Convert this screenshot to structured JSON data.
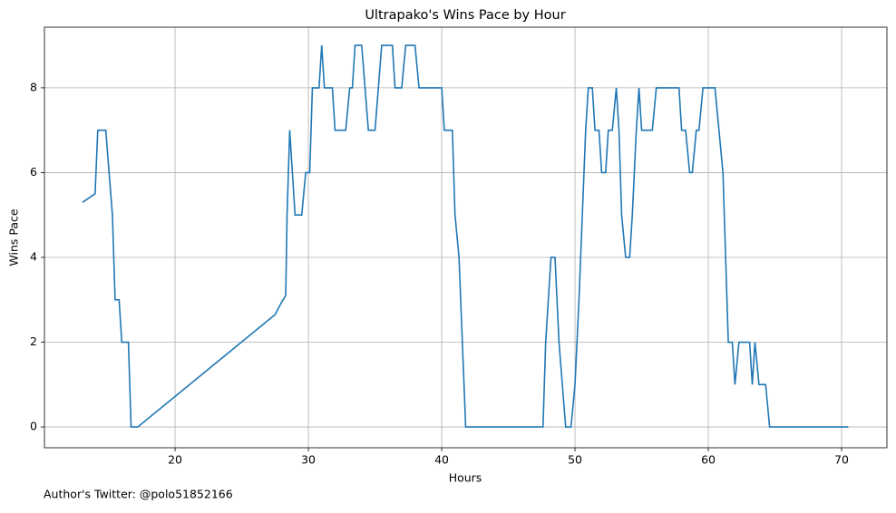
{
  "chart_data": {
    "type": "line",
    "title": "Ultrapako's Wins Pace by Hour",
    "xlabel": "Hours",
    "ylabel": "Wins Pace",
    "footnote": "Author's Twitter: @polo51852166",
    "color": "#1f77b4",
    "grid": true,
    "xlim": [
      10.2,
      73.4
    ],
    "ylim": [
      -0.49,
      9.43
    ],
    "xticks": [
      20,
      30,
      40,
      50,
      60,
      70
    ],
    "yticks": [
      0,
      2,
      4,
      6,
      8
    ],
    "x": [
      13.06,
      14.0,
      14.2,
      14.8,
      15.3,
      15.5,
      15.8,
      16.0,
      16.5,
      16.7,
      17.2,
      27.5,
      28.0,
      28.3,
      28.4,
      28.6,
      29.0,
      29.5,
      29.8,
      30.1,
      30.3,
      30.8,
      31.0,
      31.2,
      31.8,
      32.0,
      32.8,
      33.1,
      33.3,
      33.5,
      34.0,
      34.5,
      35.0,
      35.5,
      36.3,
      36.5,
      37.0,
      37.3,
      38.0,
      38.3,
      40.0,
      40.2,
      40.8,
      41.0,
      41.3,
      41.8,
      47.6,
      47.8,
      48.2,
      48.5,
      48.8,
      49.3,
      49.7,
      50.0,
      50.3,
      50.8,
      51.0,
      51.3,
      51.5,
      51.8,
      52.0,
      52.3,
      52.5,
      52.8,
      53.1,
      53.3,
      53.5,
      53.8,
      54.1,
      54.3,
      54.6,
      54.8,
      55.0,
      55.8,
      56.1,
      57.8,
      58.0,
      58.3,
      58.6,
      58.8,
      59.1,
      59.3,
      59.6,
      60.5,
      61.1,
      61.5,
      61.8,
      62.0,
      62.3,
      63.1,
      63.3,
      63.5,
      63.8,
      64.3,
      64.6,
      70.5
    ],
    "values": [
      5.3,
      5.5,
      7,
      7,
      5,
      3,
      3,
      2,
      2,
      0,
      0,
      2.65,
      2.95,
      3.1,
      5,
      7,
      5,
      5,
      6,
      6,
      8,
      8,
      9,
      8,
      8,
      7,
      7,
      8,
      8,
      9,
      9,
      7,
      7,
      9,
      9,
      8,
      8,
      9,
      9,
      8,
      8,
      7,
      7,
      5,
      4,
      0,
      0,
      2,
      4,
      4,
      2,
      0,
      0,
      1,
      3,
      7,
      8,
      8,
      7,
      7,
      6,
      6,
      7,
      7,
      8,
      7,
      5,
      4,
      4,
      5,
      7,
      8,
      7,
      7,
      8,
      8,
      7,
      7,
      6,
      6,
      7,
      7,
      8,
      8,
      6,
      2,
      2,
      1,
      2,
      2,
      1,
      2,
      1,
      1,
      0,
      0
    ]
  }
}
